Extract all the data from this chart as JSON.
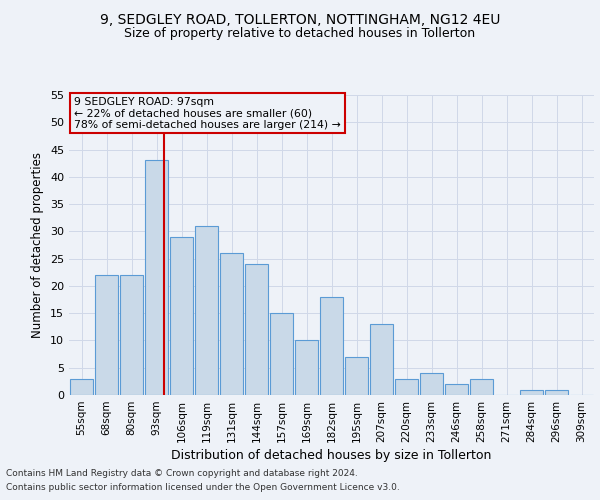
{
  "title_line1": "9, SEDGLEY ROAD, TOLLERTON, NOTTINGHAM, NG12 4EU",
  "title_line2": "Size of property relative to detached houses in Tollerton",
  "xlabel": "Distribution of detached houses by size in Tollerton",
  "ylabel": "Number of detached properties",
  "bar_labels": [
    "55sqm",
    "68sqm",
    "80sqm",
    "93sqm",
    "106sqm",
    "119sqm",
    "131sqm",
    "144sqm",
    "157sqm",
    "169sqm",
    "182sqm",
    "195sqm",
    "207sqm",
    "220sqm",
    "233sqm",
    "246sqm",
    "258sqm",
    "271sqm",
    "284sqm",
    "296sqm",
    "309sqm"
  ],
  "bar_values": [
    3,
    22,
    22,
    43,
    29,
    31,
    26,
    24,
    15,
    10,
    18,
    7,
    13,
    3,
    4,
    2,
    3,
    0,
    1,
    1,
    0
  ],
  "bar_color": "#c9d9e8",
  "bar_edge_color": "#5b9bd5",
  "grid_color": "#d0d8e8",
  "background_color": "#eef2f8",
  "annotation_line_color": "#cc0000",
  "annotation_box_text_line1": "9 SEDGLEY ROAD: 97sqm",
  "annotation_box_text_line2": "← 22% of detached houses are smaller (60)",
  "annotation_box_text_line3": "78% of semi-detached houses are larger (214) →",
  "annotation_box_color": "#cc0000",
  "ylim": [
    0,
    55
  ],
  "yticks": [
    0,
    5,
    10,
    15,
    20,
    25,
    30,
    35,
    40,
    45,
    50,
    55
  ],
  "footer_line1": "Contains HM Land Registry data © Crown copyright and database right 2024.",
  "footer_line2": "Contains public sector information licensed under the Open Government Licence v3.0."
}
